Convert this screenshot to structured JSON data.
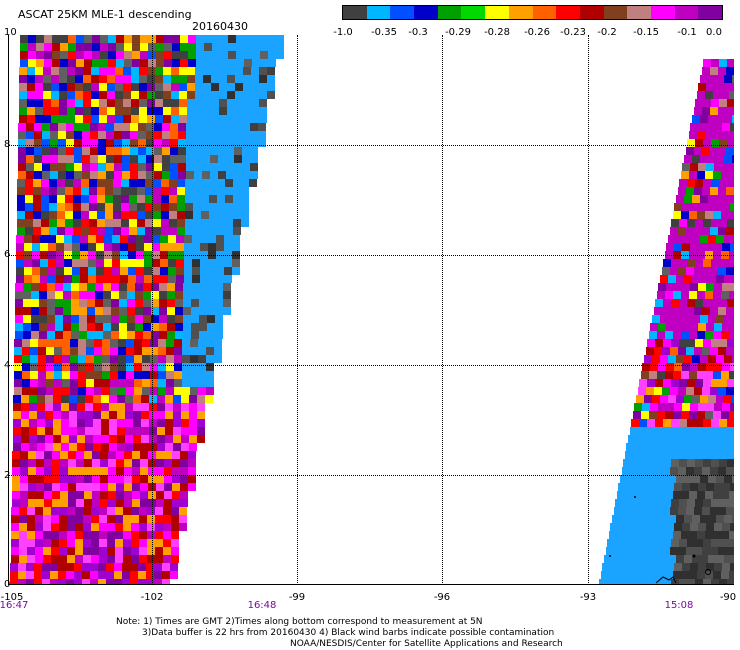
{
  "header": {
    "title": "ASCAT 25KM MLE-1 descending",
    "date": "20160430"
  },
  "colorbar": {
    "colors": [
      "#404040",
      "#00b7ff",
      "#0050ff",
      "#0000c8",
      "#00a000",
      "#00d800",
      "#ffff00",
      "#ffa000",
      "#ff6000",
      "#ff0000",
      "#b00000",
      "#804020",
      "#c08080",
      "#ff00ff",
      "#c000c0",
      "#8000a0"
    ],
    "labels": [
      "-1.0",
      "-0.35",
      "-0.3",
      "-0.29",
      "-0.28",
      "-0.26",
      "-0.23",
      "-0.2",
      "-0.15",
      "-0.1",
      "0.0"
    ]
  },
  "axes": {
    "lat_labels": [
      "10",
      "8",
      "6",
      "4",
      "2",
      "0"
    ],
    "lon_labels": [
      "-105",
      "-102",
      "-99",
      "-96",
      "-93",
      "-90"
    ],
    "time_labels": [
      "16:47",
      "16:48",
      "15:08"
    ]
  },
  "footnote": {
    "line1": "Note: 1) Times are GMT 2)Times along bottom correspond to measurement at 5N",
    "line2": "3)Data buffer is 22 hrs from 20160430 4) Black wind barbs indicate possible contamination",
    "line3": "NOAA/NESDIS/Center for Satellite Applications and Research"
  }
}
